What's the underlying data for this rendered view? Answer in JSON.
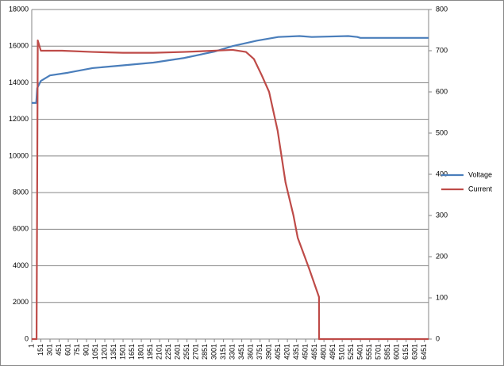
{
  "chart_data": {
    "type": "line",
    "xlim": [
      1,
      6520
    ],
    "xticks": [
      1,
      151,
      301,
      451,
      601,
      751,
      901,
      1051,
      1201,
      1351,
      1501,
      1651,
      1801,
      1951,
      2101,
      2251,
      2401,
      2551,
      2701,
      2851,
      3001,
      3151,
      3301,
      3451,
      3601,
      3751,
      3901,
      4051,
      4201,
      4351,
      4501,
      4651,
      4801,
      4951,
      5101,
      5251,
      5401,
      5551,
      5701,
      5851,
      6001,
      6151,
      6301,
      6451
    ],
    "ylim": [
      0,
      18000
    ],
    "yticks": [
      0,
      2000,
      4000,
      6000,
      8000,
      10000,
      12000,
      14000,
      16000,
      18000
    ],
    "y2lim": [
      0,
      800
    ],
    "y2ticks": [
      0,
      100,
      200,
      300,
      400,
      500,
      600,
      700,
      800
    ],
    "grid": true,
    "legend": "right",
    "series": [
      {
        "name": "Voltage",
        "color": "#4a7ebb",
        "x": [
          1,
          40,
          75,
          90,
          150,
          300,
          600,
          1000,
          1500,
          2000,
          2500,
          3000,
          3300,
          3700,
          4050,
          4400,
          4600,
          5200,
          5350,
          5400,
          6520
        ],
        "values": [
          12900,
          12900,
          12900,
          13700,
          14100,
          14400,
          14550,
          14800,
          14950,
          15100,
          15350,
          15700,
          16000,
          16300,
          16500,
          16550,
          16500,
          16550,
          16500,
          16450,
          16450
        ]
      },
      {
        "name": "Current",
        "color": "#be4b48",
        "axis": "y2",
        "x": [
          1,
          60,
          80,
          100,
          150,
          500,
          1000,
          1500,
          2000,
          2500,
          3000,
          3300,
          3520,
          3650,
          3780,
          3900,
          4040,
          4170,
          4300,
          4370,
          4560,
          4720,
          4721,
          6520
        ],
        "values": [
          0,
          0,
          0,
          725,
          700,
          700,
          697,
          695,
          695,
          697,
          700,
          702,
          697,
          680,
          640,
          600,
          506,
          380,
          300,
          246,
          170,
          102,
          0,
          0
        ]
      }
    ]
  }
}
